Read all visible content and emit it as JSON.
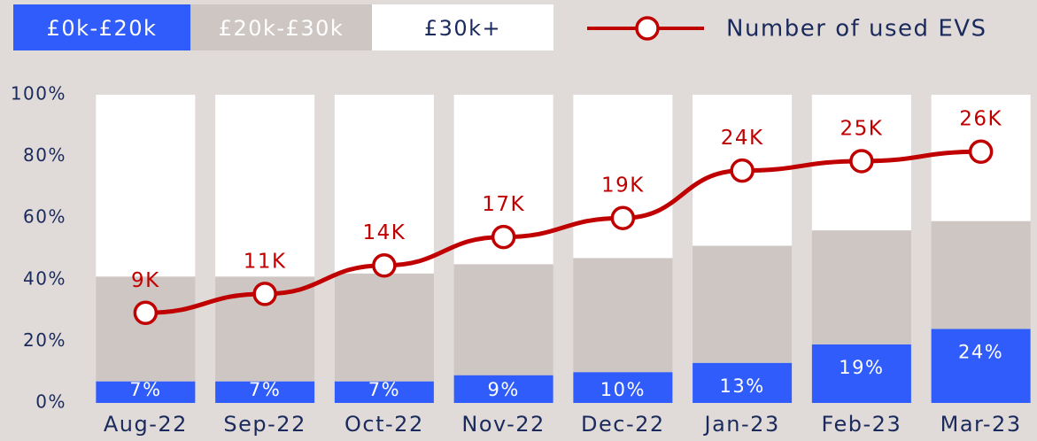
{
  "chart_data": {
    "type": "bar",
    "stacked": true,
    "categories": [
      "Aug-22",
      "Sep-22",
      "Oct-22",
      "Nov-22",
      "Dec-22",
      "Jan-23",
      "Feb-23",
      "Mar-23"
    ],
    "series": [
      {
        "name": "£0k-£20k",
        "color": "#2f5cfa",
        "values": [
          7,
          7,
          7,
          9,
          10,
          13,
          19,
          24
        ],
        "value_labels": [
          "7%",
          "7%",
          "7%",
          "9%",
          "10%",
          "13%",
          "19%",
          "24%"
        ]
      },
      {
        "name": "£20k-£30k",
        "color": "#cdc6c3",
        "values": [
          34,
          34,
          35,
          36,
          37,
          38,
          37,
          35
        ]
      },
      {
        "name": "£30k+",
        "color": "#ffffff",
        "values": [
          59,
          59,
          58,
          55,
          53,
          49,
          44,
          41
        ]
      },
      {
        "name": "Number of used EVS",
        "type": "line",
        "axis": "y2",
        "color": "#c00000",
        "values": [
          9000,
          11000,
          14000,
          17000,
          19000,
          24000,
          25000,
          26000
        ],
        "value_labels": [
          "9K",
          "11K",
          "14K",
          "17K",
          "19K",
          "24K",
          "25K",
          "26K"
        ]
      }
    ],
    "ylim": [
      0,
      100
    ],
    "yticks": [
      {
        "value": 0,
        "label": "0%"
      },
      {
        "value": 20,
        "label": "20%"
      },
      {
        "value": 40,
        "label": "40%"
      },
      {
        "value": 60,
        "label": "60%"
      },
      {
        "value": 80,
        "label": "80%"
      },
      {
        "value": 100,
        "label": "100%"
      }
    ],
    "y2lim": [
      -500,
      32000
    ],
    "grid": false
  }
}
